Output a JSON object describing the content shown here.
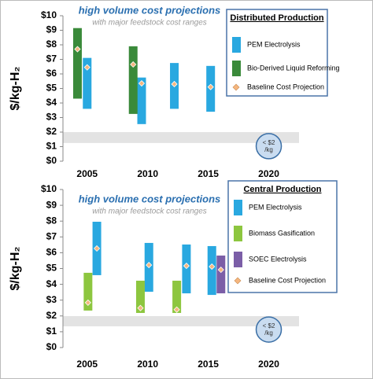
{
  "chart_data": [
    {
      "type": "range_bar",
      "title": "high volume cost projections",
      "subtitle": "with major feedstock cost ranges",
      "y_label": "$/kg-H₂",
      "legend_title": "Distributed Production",
      "xlim": [
        2003,
        2022.5
      ],
      "xticks": [
        2005,
        2010,
        2015,
        2020
      ],
      "ylim": [
        0,
        10
      ],
      "yticks": [
        {
          "value": 0,
          "label": "$0"
        },
        {
          "value": 1,
          "label": "$1"
        },
        {
          "value": 2,
          "label": "$2"
        },
        {
          "value": 3,
          "label": "$3"
        },
        {
          "value": 4,
          "label": "$4"
        },
        {
          "value": 5,
          "label": "$5"
        },
        {
          "value": 6,
          "label": "$6"
        },
        {
          "value": 7,
          "label": "$7"
        },
        {
          "value": 8,
          "label": "$8"
        },
        {
          "value": 9,
          "label": "$9"
        },
        {
          "value": 10,
          "label": "$10"
        }
      ],
      "series": [
        {
          "name": "PEM Electrolysis",
          "color": "#29a8e0",
          "x": [
            2005,
            2009.5,
            2012.2,
            2015.2
          ],
          "low": [
            3.6,
            2.55,
            3.6,
            3.4
          ],
          "high": [
            7.1,
            5.75,
            6.75,
            6.55
          ]
        },
        {
          "name": "Bio-Derived Liquid Reforming",
          "color": "#3a8a3a",
          "x": [
            2004.2,
            2008.8
          ],
          "low": [
            4.3,
            3.25
          ],
          "high": [
            9.15,
            7.9
          ]
        }
      ],
      "baseline": {
        "name": "Baseline Cost Projection",
        "color": "#f5b67f",
        "x": [
          2004.2,
          2005,
          2008.8,
          2009.5,
          2012.2,
          2015.2
        ],
        "values": [
          7.7,
          6.45,
          6.65,
          5.35,
          5.3,
          5.1
        ]
      },
      "target_band": [
        1.25,
        2
      ],
      "target_label": [
        "< $2",
        "/kg"
      ],
      "target_x": 2020
    },
    {
      "type": "range_bar",
      "title": "high volume cost projections",
      "subtitle": "with major feedstock cost ranges",
      "y_label": "$/kg-H₂",
      "legend_title": "Central Production",
      "xlim": [
        2003,
        2022.5
      ],
      "xticks": [
        2005,
        2010,
        2015,
        2020
      ],
      "ylim": [
        0,
        10
      ],
      "yticks": [
        {
          "value": 0,
          "label": "$0"
        },
        {
          "value": 1,
          "label": "$1"
        },
        {
          "value": 2,
          "label": "$2"
        },
        {
          "value": 3,
          "label": "$3"
        },
        {
          "value": 4,
          "label": "$4"
        },
        {
          "value": 5,
          "label": "$5"
        },
        {
          "value": 6,
          "label": "$6"
        },
        {
          "value": 7,
          "label": "$7"
        },
        {
          "value": 8,
          "label": "$8"
        },
        {
          "value": 9,
          "label": "$9"
        },
        {
          "value": 10,
          "label": "$10"
        }
      ],
      "series": [
        {
          "name": "PEM Electrolysis",
          "color": "#29a8e0",
          "x": [
            2005.8,
            2010.1,
            2013.2,
            2015.3
          ],
          "low": [
            4.58,
            3.53,
            3.43,
            3.33
          ],
          "high": [
            7.96,
            6.62,
            6.52,
            6.42
          ]
        },
        {
          "name": "Biomass Gasification",
          "color": "#8dc63f",
          "x": [
            2005.07,
            2009.4,
            2012.4
          ],
          "low": [
            2.34,
            2.19,
            2.19
          ],
          "high": [
            4.73,
            4.23,
            4.23
          ]
        },
        {
          "name": "SOEC Electrolysis",
          "color": "#7b5ea7",
          "x": [
            2016.05
          ],
          "low": [
            3.43
          ],
          "high": [
            5.82
          ]
        }
      ],
      "baseline": {
        "name": "Baseline  Cost Projection",
        "color": "#f5b67f",
        "x": [
          2005.07,
          2005.8,
          2009.4,
          2010.1,
          2012.4,
          2013.2,
          2015.3,
          2016.05
        ],
        "values": [
          2.84,
          6.27,
          2.5,
          5.22,
          2.4,
          5.17,
          5.12,
          4.92
        ]
      },
      "target_band": [
        1.34,
        1.99
      ],
      "target_label": [
        "< $2",
        "/kg"
      ],
      "target_x": 2020
    }
  ]
}
